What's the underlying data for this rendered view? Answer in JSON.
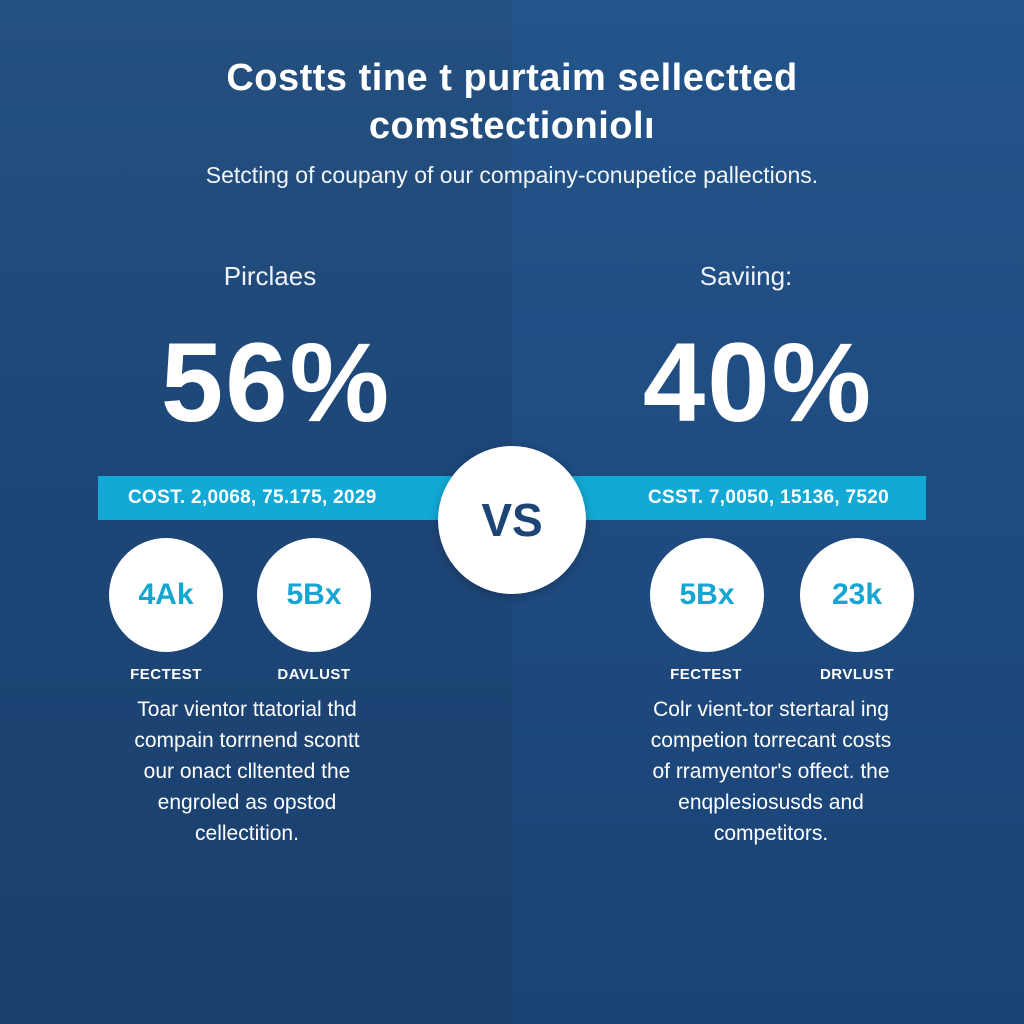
{
  "title": {
    "line1": "Costts tine t purtaim sellectted",
    "line2": "comstectioniolı"
  },
  "subtitle": "Setcting of coupany of our compainy-conupetice pallections.",
  "left": {
    "label": "Pirclaes",
    "percent": "56%",
    "band_text": "COST. 2,0068, 75.175, 2029",
    "stats": [
      {
        "value": "4Ak",
        "label": "FECTEST"
      },
      {
        "value": "5Bx",
        "label": "DAVLUST"
      }
    ],
    "paragraph": [
      "Toar vientor ttatorial thd",
      "compain torrnend scontt",
      "our onact clltented the",
      "engroled as opstod",
      "cellectition."
    ]
  },
  "vs": "VS",
  "right": {
    "label": "Saviing:",
    "percent": "40%",
    "band_text": "CSST. 7,0050, 15136, 7520",
    "stats": [
      {
        "value": "5Bx",
        "label": "FECTEST"
      },
      {
        "value": "23k",
        "label": "DRVLUST"
      }
    ],
    "paragraph": [
      "Colr vient-tor stertaral ing",
      "competion torrecant costs",
      "of rramyentor's offect. the",
      "enqplesiosusds and",
      "competitors."
    ]
  },
  "colors": {
    "background_left": "#1f4a7c",
    "background_right": "#215089",
    "accent_band": "#13a9d6",
    "circle_text": "#16a6d2",
    "vs_text": "#1c4474"
  }
}
